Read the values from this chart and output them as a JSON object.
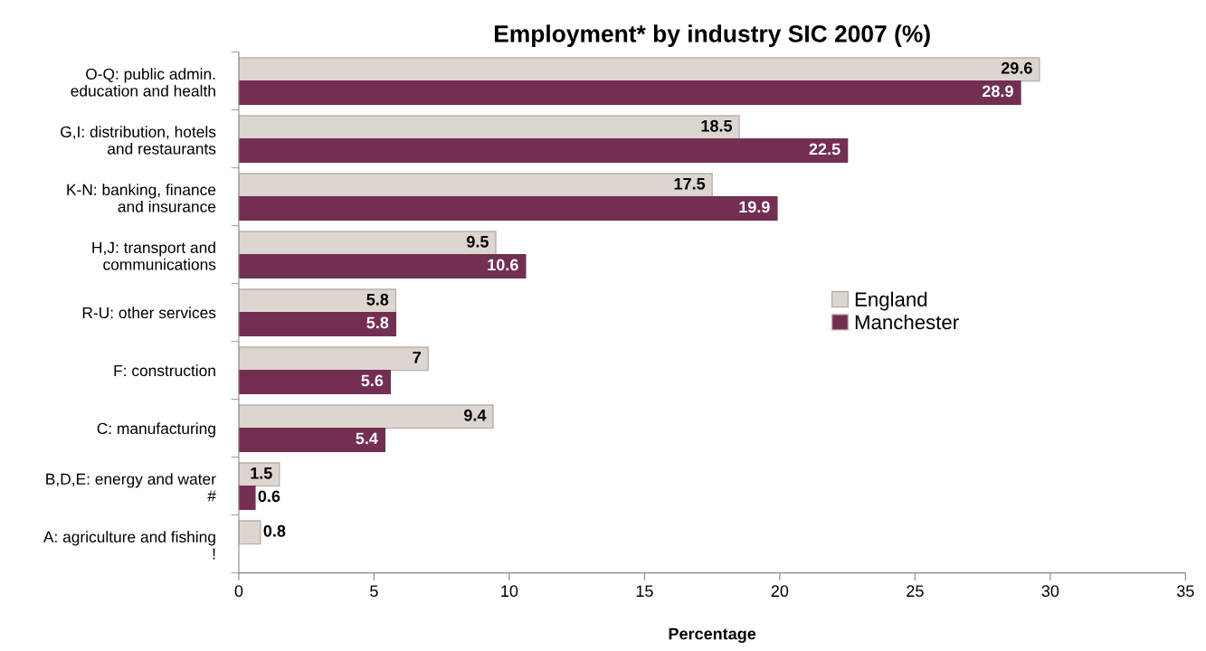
{
  "chart_data": {
    "type": "bar",
    "orientation": "horizontal",
    "title": "Employment* by industry SIC 2007 (%)",
    "xlabel": "Percentage",
    "categories": [
      "O-Q: public admin.\neducation and health",
      "G,I: distribution, hotels\nand restaurants",
      "K-N: banking, finance\nand insurance",
      "H,J: transport and\ncommunications",
      "R-U: other services",
      "F: construction",
      "C: manufacturing",
      "B,D,E: energy and water\n#",
      "A: agriculture and fishing\n!"
    ],
    "series": [
      {
        "name": "England",
        "color": "#ddd5d0",
        "values": [
          29.6,
          18.5,
          17.5,
          9.5,
          5.8,
          7,
          9.4,
          1.5,
          0.8
        ]
      },
      {
        "name": "Manchester",
        "color": "#722f52",
        "values": [
          28.9,
          22.5,
          19.9,
          10.6,
          5.8,
          5.6,
          5.4,
          0.6,
          null
        ]
      }
    ],
    "xlim": [
      0,
      35
    ],
    "xticks": [
      0,
      5,
      10,
      15,
      20,
      25,
      30,
      35
    ],
    "data_labels": true,
    "legend": "center right",
    "grid": false
  }
}
